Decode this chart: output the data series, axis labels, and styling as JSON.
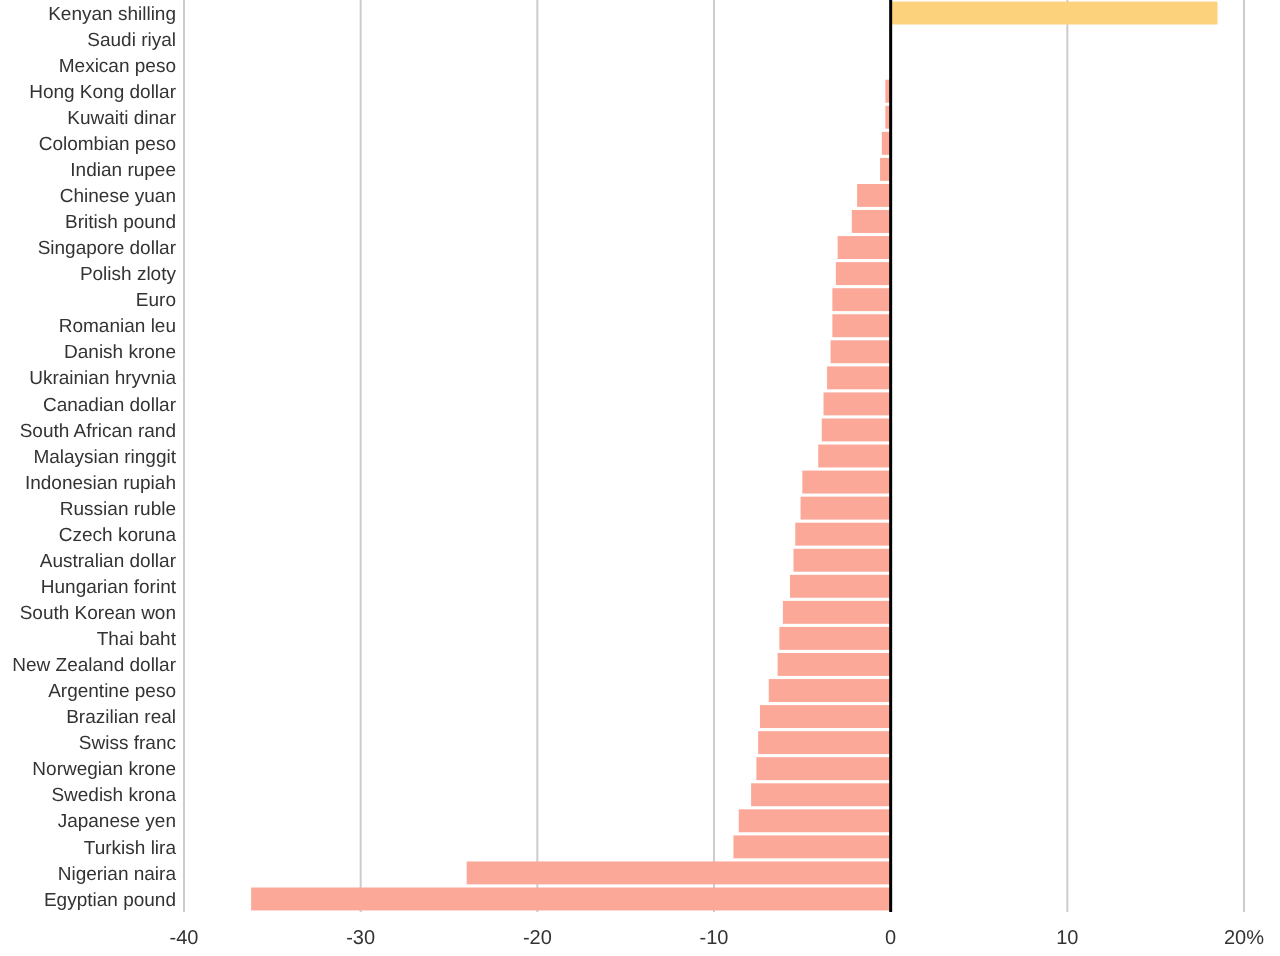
{
  "chart_data": {
    "type": "bar",
    "orientation": "horizontal",
    "categories": [
      "Kenyan shilling",
      "Saudi riyal",
      "Mexican peso",
      "Hong Kong dollar",
      "Kuwaiti dinar",
      "Colombian peso",
      "Indian rupee",
      "Chinese yuan",
      "British pound",
      "Singapore dollar",
      "Polish zloty",
      "Euro",
      "Romanian leu",
      "Danish krone",
      "Ukrainian hryvnia",
      "Canadian dollar",
      "South African rand",
      "Malaysian ringgit",
      "Indonesian rupiah",
      "Russian ruble",
      "Czech koruna",
      "Australian dollar",
      "Hungarian forint",
      "South Korean won",
      "Thai baht",
      "New Zealand dollar",
      "Argentine peso",
      "Brazilian real",
      "Swiss franc",
      "Norwegian krone",
      "Swedish krona",
      "Japanese yen",
      "Turkish lira",
      "Nigerian naira",
      "Egyptian pound"
    ],
    "values": [
      18.5,
      0,
      0,
      -0.3,
      -0.3,
      -0.5,
      -0.6,
      -1.9,
      -2.2,
      -3.0,
      -3.1,
      -3.3,
      -3.3,
      -3.4,
      -3.6,
      -3.8,
      -3.9,
      -4.1,
      -5.0,
      -5.1,
      -5.4,
      -5.5,
      -5.7,
      -6.1,
      -6.3,
      -6.4,
      -6.9,
      -7.4,
      -7.5,
      -7.6,
      -7.9,
      -8.6,
      -8.9,
      -24,
      -36.2
    ],
    "colors": [
      "#fdd27c",
      "#fca898",
      "#fca898",
      "#fca898",
      "#fca898",
      "#fca898",
      "#fca898",
      "#fca898",
      "#fca898",
      "#fca898",
      "#fca898",
      "#fca898",
      "#fca898",
      "#fca898",
      "#fca898",
      "#fca898",
      "#fca898",
      "#fca898",
      "#fca898",
      "#fca898",
      "#fca898",
      "#fca898",
      "#fca898",
      "#fca898",
      "#fca898",
      "#fca898",
      "#fca898",
      "#fca898",
      "#fca898",
      "#fca898",
      "#fca898",
      "#fca898",
      "#fca898",
      "#fca898",
      "#fca898"
    ],
    "xlim": [
      -40,
      20
    ],
    "xticks": [
      -40,
      -30,
      -20,
      -10,
      0,
      10,
      {
        "value": 20,
        "label": "20%"
      }
    ],
    "grid": "x"
  }
}
